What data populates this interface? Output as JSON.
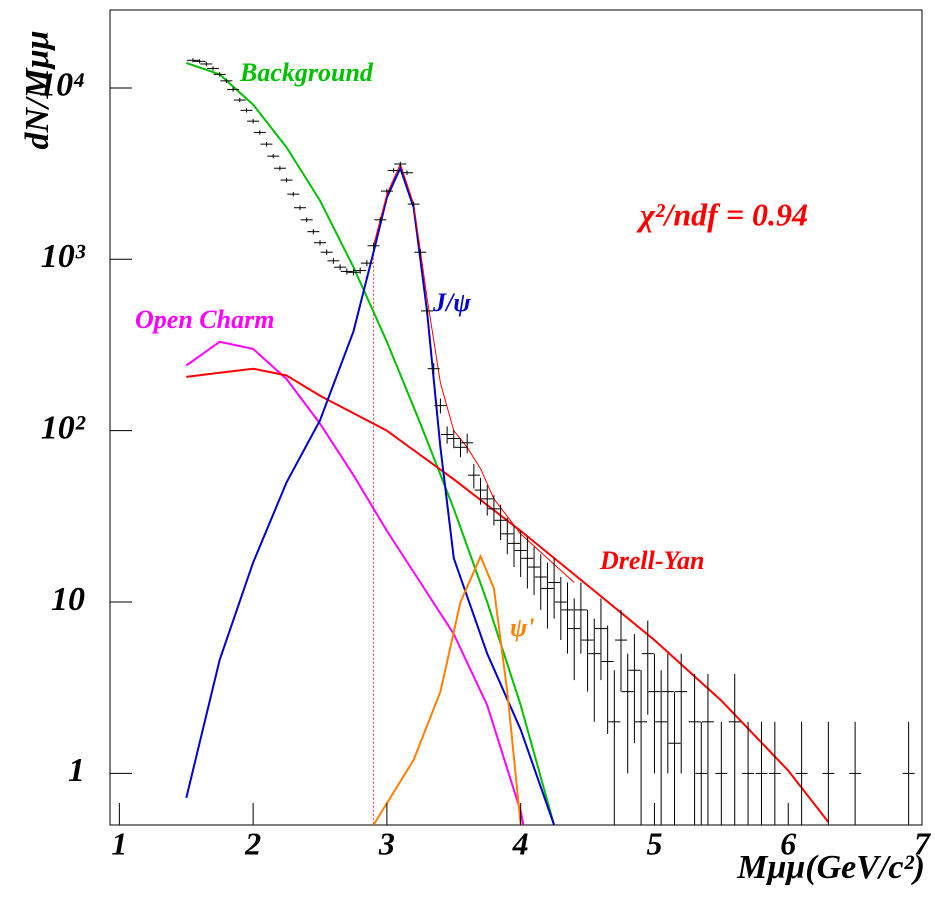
{
  "chart_data": {
    "type": "line",
    "xlabel": "Mμμ(GeV/c²)",
    "ylabel": "dN/Mμμ",
    "annotation": "χ²/ndf = 0.94",
    "annotation_color": "#ff0000",
    "xlim": [
      0.93,
      7
    ],
    "xticks": [
      1,
      2,
      3,
      4,
      5,
      6,
      7
    ],
    "ylim": [
      0.5,
      28500
    ],
    "yscale": "log",
    "yticks": [
      1,
      10,
      {
        "value": 100,
        "label": "10²"
      },
      {
        "value": 1000,
        "label": "10³"
      },
      {
        "value": 10000,
        "label": "10⁴"
      }
    ],
    "vline": 2.9,
    "series": [
      {
        "name": "Background",
        "color": "#00c000",
        "x": [
          1.5,
          1.75,
          2.0,
          2.25,
          2.5,
          2.75,
          3.0,
          3.25,
          3.5,
          3.75,
          4.0,
          4.25
        ],
        "values": [
          14000,
          12000,
          8000,
          4500,
          2200,
          900,
          330,
          110,
          35,
          10,
          2.5,
          0.5
        ]
      },
      {
        "name": "Open Charm",
        "color": "#ff00ff",
        "x": [
          1.5,
          1.75,
          2.0,
          2.25,
          2.5,
          2.75,
          3.0,
          3.25,
          3.5,
          3.75,
          4.0,
          4.02
        ],
        "values": [
          240,
          330,
          300,
          200,
          110,
          55,
          26,
          13,
          6.5,
          2.5,
          0.6,
          0.5
        ]
      },
      {
        "name": "Drell-Yan",
        "color": "#ff0000",
        "x": [
          1.5,
          1.75,
          2.0,
          2.25,
          2.5,
          3.0,
          3.5,
          4.0,
          4.5,
          5.0,
          5.5,
          6.0,
          6.3
        ],
        "values": [
          206,
          218,
          230,
          210,
          160,
          100,
          52,
          26,
          12.5,
          6,
          2.66,
          1.04,
          0.52
        ]
      },
      {
        "name": "J/ψ",
        "color": "#0000cc",
        "x": [
          1.5,
          1.75,
          2.0,
          2.25,
          2.5,
          2.75,
          2.9,
          3.0,
          3.1,
          3.2,
          3.3,
          3.4,
          3.5,
          3.75,
          4.0,
          4.25
        ],
        "values": [
          0.72,
          4.6,
          17,
          50,
          115,
          380,
          1100,
          2300,
          3400,
          2000,
          500,
          80,
          18,
          5,
          1.8,
          0.5
        ]
      },
      {
        "name": "ψ'",
        "color": "#ff8000",
        "x": [
          2.9,
          3.2,
          3.4,
          3.55,
          3.7,
          3.8,
          3.9,
          4.0
        ],
        "values": [
          0.5,
          1.2,
          3,
          10,
          18.5,
          12,
          3,
          0.5
        ]
      },
      {
        "color": "#ff0000",
        "x": [
          2.9,
          3.0,
          3.1,
          3.2,
          3.3,
          3.4,
          3.5,
          3.6,
          3.7,
          3.8,
          4.0,
          4.2,
          4.4
        ],
        "values": [
          1200,
          2400,
          3600,
          2100,
          600,
          190,
          100,
          80,
          60,
          40,
          25,
          18,
          13
        ]
      },
      {
        "color": "#000000",
        "x": [
          1.55,
          1.6,
          1.65,
          1.7,
          1.75,
          1.8,
          1.85,
          1.9,
          1.95,
          2.0,
          2.05,
          2.1,
          2.15,
          2.2,
          2.25,
          2.3,
          2.35,
          2.4,
          2.45,
          2.5,
          2.55,
          2.6,
          2.65,
          2.7,
          2.75,
          2.8,
          2.85,
          2.9,
          2.95,
          3.0,
          3.05,
          3.1,
          3.15,
          3.2,
          3.25,
          3.3,
          3.35,
          3.4,
          3.45,
          3.5,
          3.55,
          3.6,
          3.65,
          3.7,
          3.75,
          3.8,
          3.85,
          3.9,
          3.95,
          4.0,
          4.05,
          4.1,
          4.15,
          4.2,
          4.25,
          4.3,
          4.35,
          4.4,
          4.45,
          4.5,
          4.55,
          4.6,
          4.65,
          4.7,
          4.75,
          4.8,
          4.85,
          4.9,
          4.95,
          5.0,
          5.05,
          5.1,
          5.15,
          5.2,
          5.3,
          5.35,
          5.4,
          5.5,
          5.6,
          5.7,
          5.8,
          5.9,
          6.1,
          6.3,
          6.5,
          6.9
        ],
        "values": [
          14500,
          14300,
          13800,
          13000,
          12000,
          11000,
          9800,
          8500,
          7400,
          6400,
          5500,
          4700,
          4000,
          3400,
          2900,
          2400,
          2000,
          1700,
          1450,
          1250,
          1100,
          980,
          900,
          850,
          840,
          860,
          950,
          1200,
          1700,
          2500,
          3300,
          3600,
          3200,
          2100,
          1100,
          500,
          230,
          140,
          95,
          90,
          80,
          85,
          55,
          45,
          40,
          35,
          30,
          25,
          22,
          20,
          18,
          16,
          14,
          12,
          13,
          10,
          9,
          7,
          9,
          6,
          5,
          7,
          4.5,
          2,
          6,
          3,
          4,
          2,
          5,
          3,
          2,
          3,
          1.5,
          3,
          2,
          1,
          2,
          1,
          2,
          1,
          1,
          1,
          1,
          1,
          1,
          1
        ],
        "errors": [
          400,
          400,
          400,
          390,
          360,
          330,
          290,
          250,
          220,
          190,
          165,
          140,
          120,
          100,
          90,
          75,
          65,
          55,
          50,
          45,
          40,
          38,
          36,
          35,
          35,
          36,
          40,
          50,
          60,
          80,
          100,
          110,
          100,
          70,
          45,
          30,
          18,
          14,
          11,
          11,
          10,
          11,
          9,
          8,
          8,
          7,
          7,
          6,
          6,
          6,
          6,
          5,
          5,
          5,
          5,
          4,
          4,
          3.5,
          4,
          3,
          3,
          3.5,
          2.8,
          2,
          3,
          2,
          2.5,
          2,
          2.8,
          2,
          2,
          2,
          1.5,
          2,
          1.8,
          1,
          1.8,
          1,
          1.8,
          1,
          1,
          1,
          1,
          1,
          1,
          1
        ]
      }
    ]
  }
}
